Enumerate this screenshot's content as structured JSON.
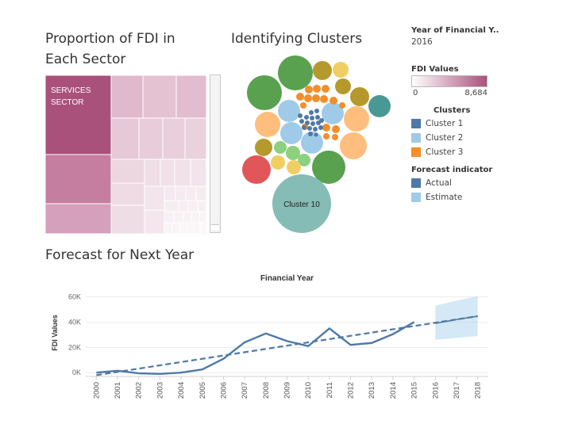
{
  "treemap_panel": {
    "title_line1": "Proportion of FDI in",
    "title_line2": "Each Sector",
    "top_cell_label_line1": "SERVICES",
    "top_cell_label_line2": "SECTOR"
  },
  "clusters_panel": {
    "title": "Identifying Clusters",
    "big_bubble_label": "Cluster 10"
  },
  "legend": {
    "year_filter_title": "Year of Financial Y..",
    "year_filter_value": "2016",
    "fdi_title": "FDI Values",
    "fdi_min": "0",
    "fdi_max": "8,684",
    "clusters_title": "Clusters",
    "clusters": [
      {
        "label": "Cluster 1",
        "color": "#4e79a7"
      },
      {
        "label": "Cluster 2",
        "color": "#a0cbe8"
      },
      {
        "label": "Cluster 3",
        "color": "#f28e2b"
      }
    ],
    "forecast_title": "Forecast indicator",
    "forecast_items": [
      {
        "label": "Actual",
        "color": "#4e79a7"
      },
      {
        "label": "Estimate",
        "color": "#a0cbe8"
      }
    ]
  },
  "forecast_panel": {
    "title": "Forecast for Next Year"
  },
  "chart_data": {
    "type": "line",
    "title": "Financial Year",
    "xlabel": "",
    "ylabel": "FDI Values",
    "categories": [
      "2000",
      "2001",
      "2002",
      "2003",
      "2004",
      "2005",
      "2006",
      "2007",
      "2008",
      "2009",
      "2010",
      "2011",
      "2012",
      "2013",
      "2014",
      "2015",
      "2016",
      "2017",
      "2018"
    ],
    "y_ticks": [
      "60K",
      "40K",
      "20K",
      "0K"
    ],
    "ylim": [
      -3000,
      66000
    ],
    "series": [
      {
        "name": "Actual",
        "color": "#4e79a7",
        "x": [
          "2000",
          "2001",
          "2002",
          "2003",
          "2004",
          "2005",
          "2006",
          "2007",
          "2008",
          "2009",
          "2010",
          "2011",
          "2012",
          "2013",
          "2014",
          "2015"
        ],
        "values": [
          0,
          1500,
          -500,
          -1000,
          0,
          2500,
          11000,
          24000,
          31000,
          25000,
          21000,
          35000,
          22000,
          23500,
          30500,
          40000
        ]
      },
      {
        "name": "Estimate",
        "color": "#4e79a7",
        "x": [
          "2016",
          "2017",
          "2018"
        ],
        "values": [
          39000,
          42000,
          44700
        ],
        "band_upper": [
          53000,
          57000,
          60500
        ],
        "band_lower": [
          26000,
          27500,
          29000
        ]
      }
    ],
    "trend_line": {
      "x": [
        "2000",
        "2018"
      ],
      "values": [
        -2000,
        44700
      ]
    },
    "grid": true
  }
}
